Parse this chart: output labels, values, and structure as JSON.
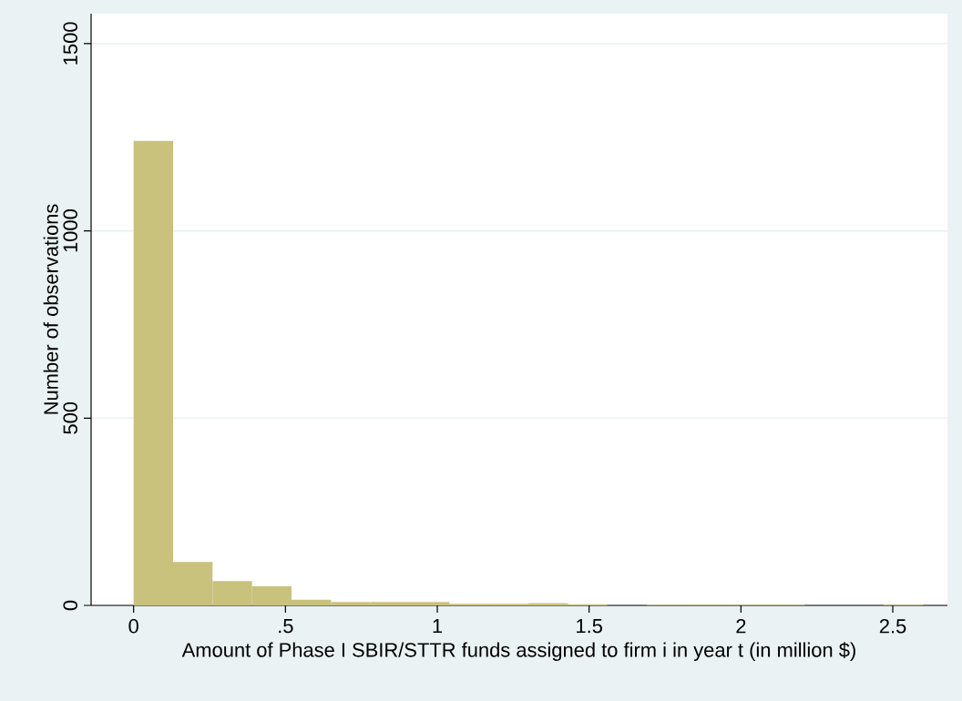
{
  "chart_data": {
    "type": "histogram",
    "xlabel": "Amount of Phase I SBIR/STTR funds assigned to firm i in year t (in million $)",
    "ylabel": "Number of observations",
    "bins": [
      0,
      0.13,
      0.26,
      0.39,
      0.52,
      0.65,
      0.78,
      0.91,
      1.04,
      1.17,
      1.3,
      1.43,
      1.56,
      1.69,
      1.82,
      1.95,
      2.08,
      2.21,
      2.34,
      2.47,
      2.6
    ],
    "values": [
      1240,
      116,
      65,
      51,
      15,
      9,
      9,
      9,
      4,
      4,
      6,
      3,
      0,
      2,
      2,
      2,
      2,
      0,
      0,
      2
    ],
    "color": "#c9c27d",
    "xlim": [
      -0.14,
      2.68
    ],
    "ylim": [
      0,
      1580
    ],
    "xticks": [
      0,
      {
        "value": 0.5,
        "label": ".5"
      },
      1,
      1.5,
      2,
      2.5
    ],
    "yticks": [
      0,
      500,
      1000,
      1500
    ],
    "grid": "y"
  }
}
